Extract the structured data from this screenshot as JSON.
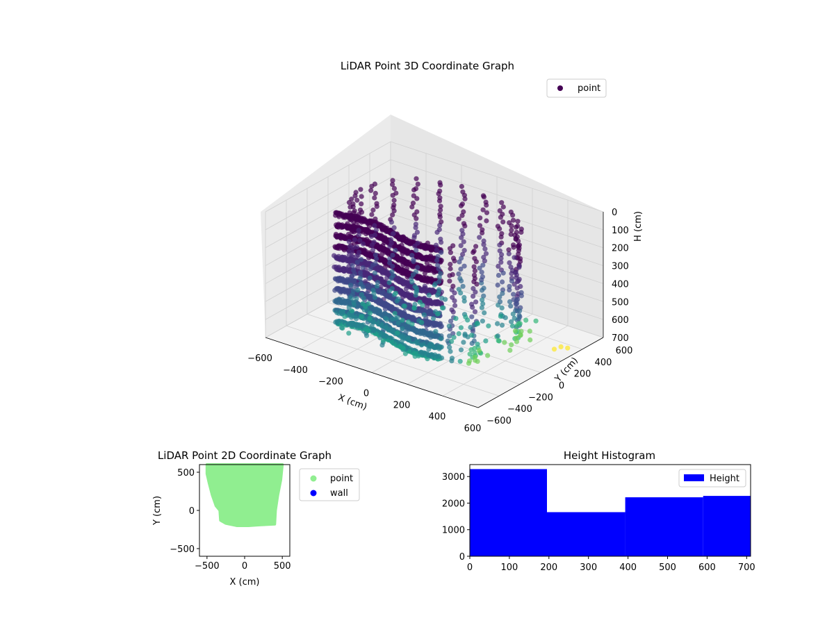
{
  "chart_data": [
    {
      "type": "scatter3d",
      "title": "LiDAR Point 3D Coordinate Graph",
      "xlabel": "X (cm)",
      "ylabel": "Y (cm)",
      "zlabel": "H (cm)",
      "xlim": [
        -600,
        600
      ],
      "ylim": [
        -600,
        600
      ],
      "zlim": [
        0,
        700
      ],
      "z_inverted": true,
      "x_ticks": [
        "−600",
        "−400",
        "−200",
        "0",
        "200",
        "400",
        "600"
      ],
      "y_ticks": [
        "−600",
        "−400",
        "−200",
        "0",
        "200",
        "400",
        "600"
      ],
      "z_ticks": [
        "0",
        "100",
        "200",
        "300",
        "400",
        "500",
        "600",
        "700"
      ],
      "colormap": "viridis",
      "legend": {
        "position": "top-right",
        "entries": [
          {
            "name": "point",
            "color": "#440154"
          }
        ]
      },
      "grid": true
    },
    {
      "type": "scatter",
      "title": "LiDAR Point 2D Coordinate Graph",
      "xlabel": "X (cm)",
      "ylabel": "Y (cm)",
      "xlim": [
        -600,
        600
      ],
      "ylim": [
        -600,
        600
      ],
      "x_ticks": [
        "−500",
        "0",
        "500"
      ],
      "y_ticks": [
        "−500",
        "0",
        "500"
      ],
      "footprint_outline": [
        [
          -500,
          600
        ],
        [
          -500,
          480
        ],
        [
          -470,
          350
        ],
        [
          -430,
          200
        ],
        [
          -380,
          60
        ],
        [
          -330,
          0
        ],
        [
          -320,
          -130
        ],
        [
          -250,
          -170
        ],
        [
          -100,
          -200
        ],
        [
          50,
          -200
        ],
        [
          200,
          -190
        ],
        [
          400,
          -180
        ],
        [
          410,
          0
        ],
        [
          440,
          200
        ],
        [
          480,
          400
        ],
        [
          500,
          600
        ]
      ],
      "legend": {
        "position": "outside-right",
        "entries": [
          {
            "name": "point",
            "color": "#90ee90"
          },
          {
            "name": "wall",
            "color": "#0000ff"
          }
        ]
      },
      "grid": false
    },
    {
      "type": "bar",
      "title": "Height Histogram",
      "xlim": [
        0,
        710
      ],
      "ylim": [
        0,
        3450
      ],
      "x_ticks": [
        "0",
        "100",
        "200",
        "300",
        "400",
        "500",
        "600",
        "700"
      ],
      "y_ticks": [
        "0",
        "1000",
        "2000",
        "3000"
      ],
      "bins": [
        {
          "start": 0,
          "end": 195,
          "count": 3280
        },
        {
          "start": 195,
          "end": 393,
          "count": 1660
        },
        {
          "start": 393,
          "end": 590,
          "count": 2220
        },
        {
          "start": 590,
          "end": 710,
          "count": 2270
        }
      ],
      "color": "#0000ff",
      "legend": {
        "position": "top-right",
        "entries": [
          {
            "name": "Height",
            "color": "#0000ff"
          }
        ]
      },
      "grid": false
    }
  ]
}
